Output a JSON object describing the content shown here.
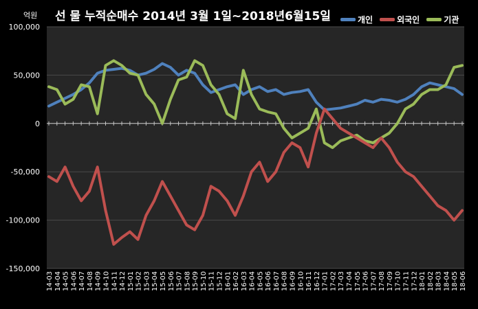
{
  "chart_data": {
    "type": "line",
    "title": "선 물 누적순매수 2014년 3월 1일~2018년6월15일",
    "ylabel": "억원",
    "ylim": [
      -150000,
      100000
    ],
    "yticks": [
      100000,
      50000,
      0,
      -50000,
      -100000,
      -150000
    ],
    "ytick_labels": [
      "100,000",
      "50,000",
      "0",
      "-50,000",
      "-100,000",
      "-150,000"
    ],
    "grid": true,
    "legend_position": "top-right",
    "categories": [
      "14-03",
      "14-04",
      "14-05",
      "14-06",
      "14-07",
      "14-08",
      "14-09",
      "14-10",
      "14-11",
      "14-12",
      "15-01",
      "15-02",
      "15-03",
      "15-04",
      "15-05",
      "15-06",
      "15-07",
      "15-08",
      "15-09",
      "15-10",
      "15-11",
      "15-12",
      "16-01",
      "16-02",
      "16-03",
      "16-04",
      "16-05",
      "16-06",
      "16-07",
      "16-08",
      "16-09",
      "16-10",
      "16-11",
      "16-12",
      "17-01",
      "17-02",
      "17-03",
      "17-04",
      "17-05",
      "17-06",
      "17-07",
      "17-08",
      "17-09",
      "17-10",
      "17-11",
      "17-12",
      "18-01",
      "18-02",
      "18-03",
      "18-04",
      "18-05",
      "18-06"
    ],
    "series": [
      {
        "name": "개인",
        "color": "#4F81BD",
        "values": [
          18000,
          22000,
          26000,
          30000,
          35000,
          42000,
          52000,
          55000,
          56000,
          57000,
          55000,
          50000,
          52000,
          56000,
          62000,
          58000,
          50000,
          55000,
          52000,
          40000,
          32000,
          35000,
          38000,
          40000,
          30000,
          35000,
          38000,
          33000,
          35000,
          30000,
          32000,
          33000,
          35000,
          22000,
          14000,
          15000,
          16000,
          18000,
          20000,
          24000,
          22000,
          25000,
          24000,
          22000,
          25000,
          30000,
          38000,
          42000,
          40000,
          38000,
          36000,
          30000
        ]
      },
      {
        "name": "외국인",
        "color": "#C0504D",
        "values": [
          -55000,
          -60000,
          -45000,
          -65000,
          -80000,
          -70000,
          -45000,
          -90000,
          -125000,
          -118000,
          -112000,
          -120000,
          -95000,
          -80000,
          -60000,
          -75000,
          -90000,
          -105000,
          -110000,
          -95000,
          -65000,
          -70000,
          -80000,
          -95000,
          -75000,
          -50000,
          -40000,
          -60000,
          -50000,
          -30000,
          -20000,
          -25000,
          -45000,
          -10000,
          15000,
          5000,
          -5000,
          -10000,
          -15000,
          -20000,
          -25000,
          -15000,
          -25000,
          -40000,
          -50000,
          -55000,
          -65000,
          -75000,
          -85000,
          -90000,
          -100000,
          -90000
        ]
      },
      {
        "name": "기관",
        "color": "#9BBB59",
        "values": [
          38000,
          35000,
          20000,
          25000,
          40000,
          38000,
          10000,
          60000,
          65000,
          60000,
          52000,
          50000,
          30000,
          20000,
          0,
          25000,
          45000,
          48000,
          65000,
          60000,
          40000,
          30000,
          10000,
          5000,
          55000,
          30000,
          15000,
          12000,
          10000,
          -5000,
          -15000,
          -10000,
          -5000,
          15000,
          -20000,
          -25000,
          -18000,
          -15000,
          -12000,
          -18000,
          -20000,
          -15000,
          -10000,
          0,
          15000,
          20000,
          30000,
          35000,
          35000,
          40000,
          58000,
          60000
        ]
      }
    ]
  }
}
